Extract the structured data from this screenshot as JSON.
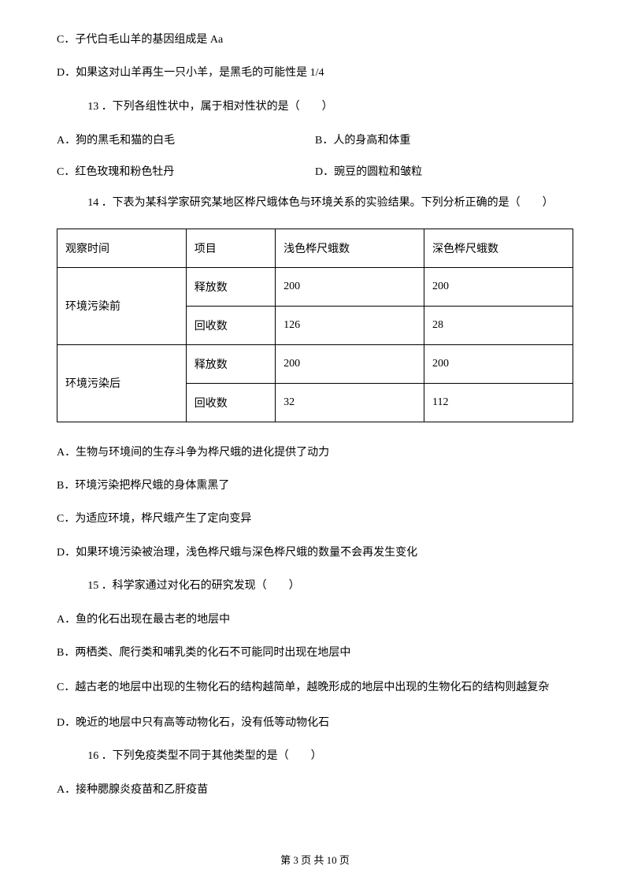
{
  "options_c": "C．子代白毛山羊的基因组成是 Aa",
  "options_d": "D．如果这对山羊再生一只小羊，是黑毛的可能性是 1/4",
  "q13": {
    "stem": "13 ．下列各组性状中，属于相对性状的是（　　）",
    "a": "A．狗的黑毛和猫的白毛",
    "b": "B．人的身高和体重",
    "c": "C．红色玫瑰和粉色牡丹",
    "d": "D．豌豆的圆粒和皱粒"
  },
  "q14": {
    "stem": "14 ．下表为某科学家研究某地区桦尺蛾体色与环境关系的实验结果。下列分析正确的是（　　）",
    "table": {
      "headers": [
        "观察时间",
        "项目",
        "浅色桦尺蛾数",
        "深色桦尺蛾数"
      ],
      "rows": [
        {
          "rowspan_label": "环境污染前",
          "sub": [
            {
              "item": "释放数",
              "light": "200",
              "dark": "200"
            },
            {
              "item": "回收数",
              "light": "126",
              "dark": "28"
            }
          ]
        },
        {
          "rowspan_label": "环境污染后",
          "sub": [
            {
              "item": "释放数",
              "light": "200",
              "dark": "200"
            },
            {
              "item": "回收数",
              "light": "32",
              "dark": "112"
            }
          ]
        }
      ]
    },
    "a": "A．生物与环境间的生存斗争为桦尺蛾的进化提供了动力",
    "b": "B．环境污染把桦尺蛾的身体熏黑了",
    "c": "C．为适应环境，桦尺蛾产生了定向变异",
    "d": "D．如果环境污染被治理，浅色桦尺蛾与深色桦尺蛾的数量不会再发生变化"
  },
  "q15": {
    "stem": "15 ．科学家通过对化石的研究发现（　　）",
    "a": "A．鱼的化石出现在最古老的地层中",
    "b": "B．两栖类、爬行类和哺乳类的化石不可能同时出现在地层中",
    "c": "C．越古老的地层中出现的生物化石的结构越简单，越晚形成的地层中出现的生物化石的结构则越复杂",
    "d": "D．晚近的地层中只有高等动物化石，没有低等动物化石"
  },
  "q16": {
    "stem": "16 ．下列免疫类型不同于其他类型的是（　　）",
    "a": "A．接种腮腺炎疫苗和乙肝疫苗"
  },
  "footer": "第 3 页 共 10 页"
}
